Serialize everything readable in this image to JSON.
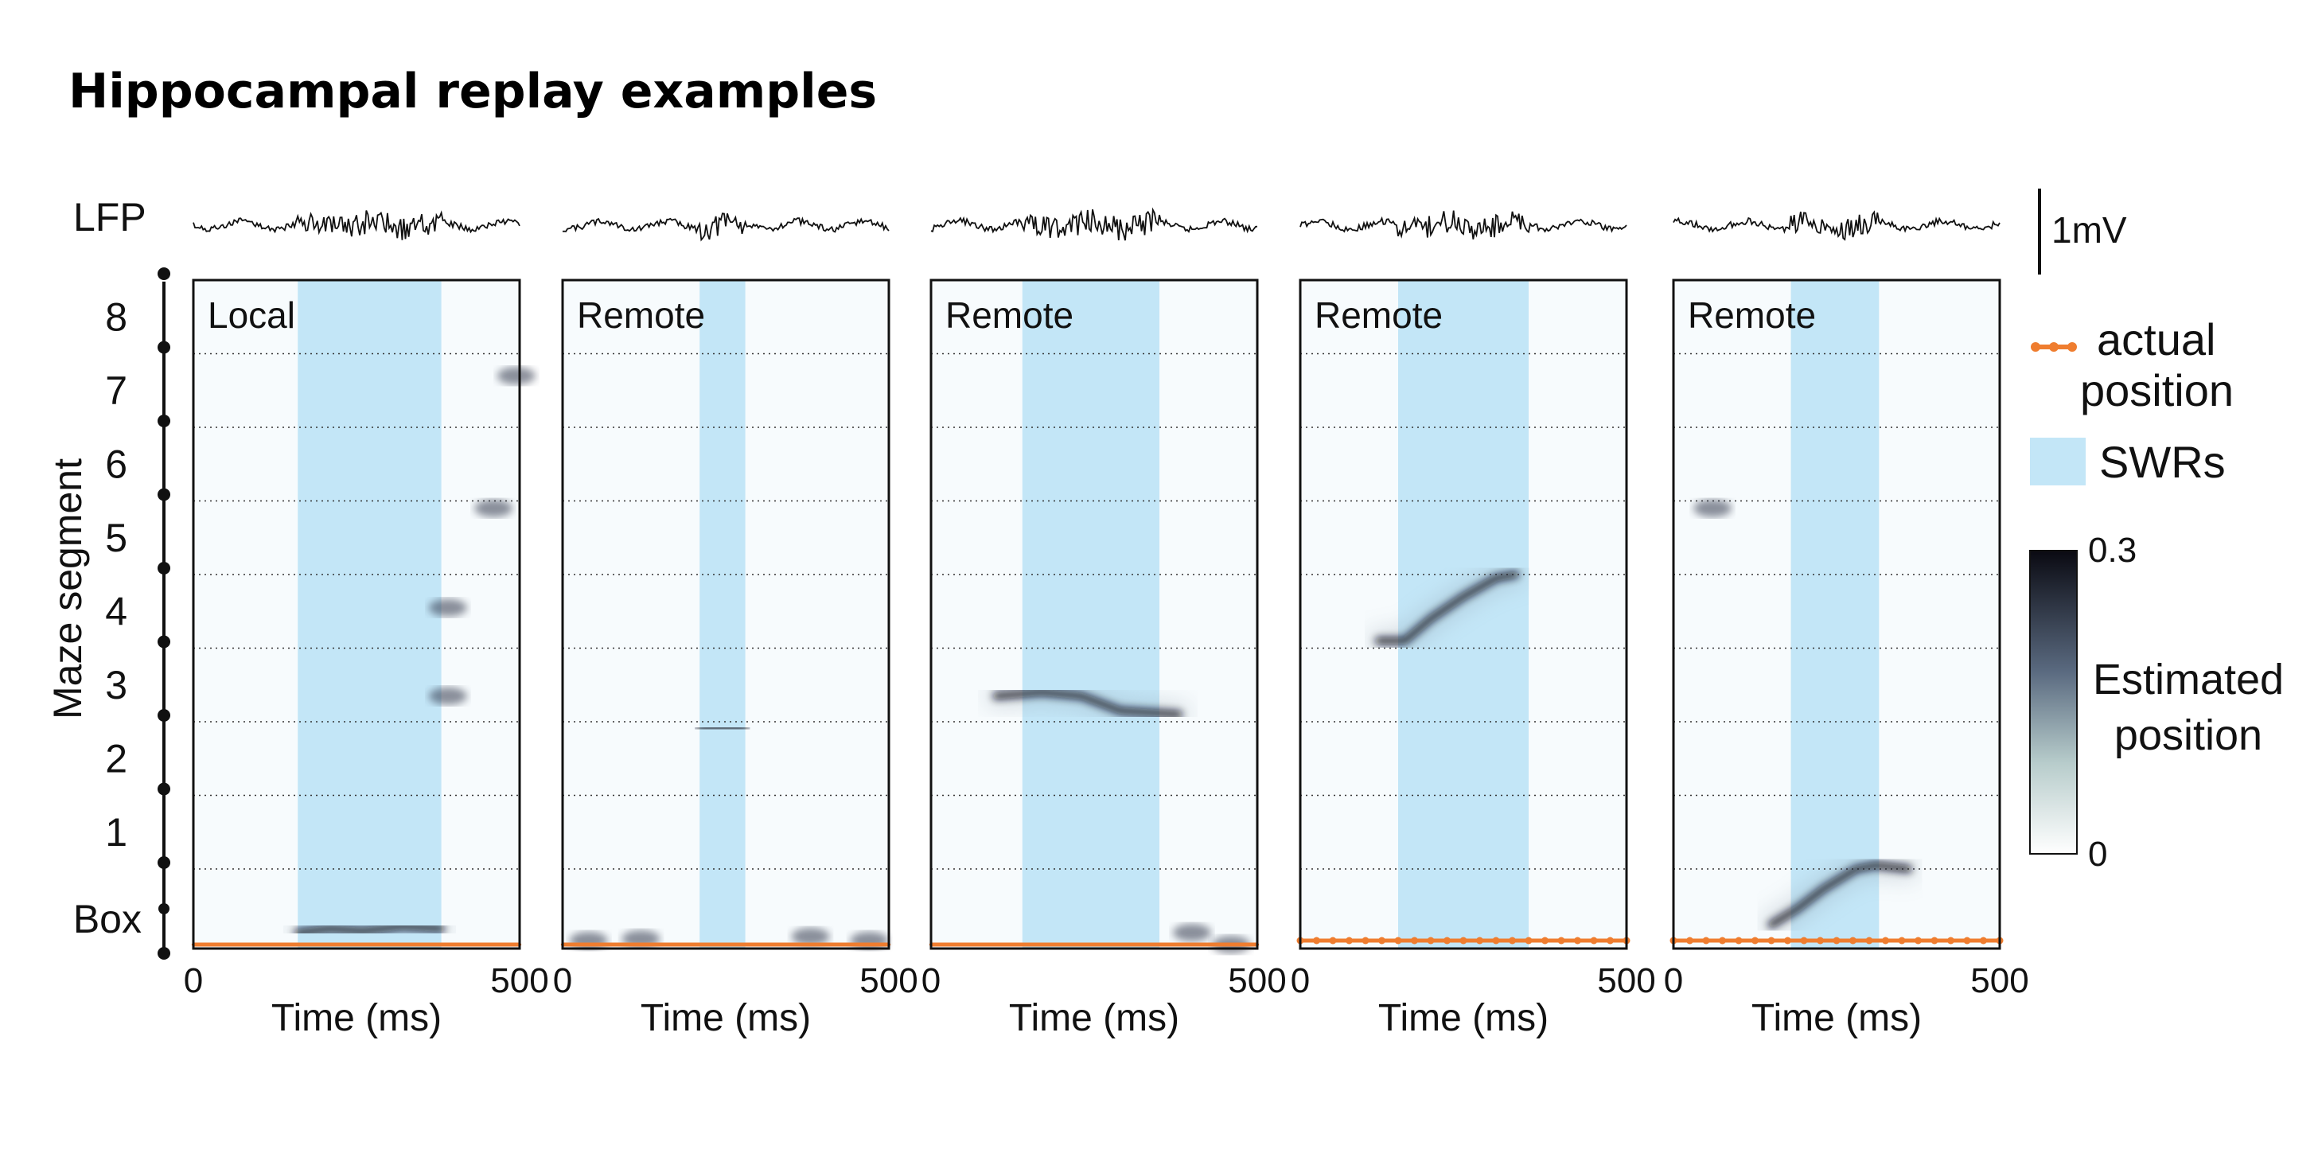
{
  "title": "Hippocampal replay examples",
  "lfp_label": "LFP",
  "scale_bar_label": "1mV",
  "y_axis_label": "Maze segment",
  "y_tick_labels": [
    "8",
    "7",
    "6",
    "5",
    "4",
    "3",
    "2",
    "1",
    "Box"
  ],
  "x_axis_label": "Time (ms)",
  "x_tick_labels": [
    "0",
    "500"
  ],
  "legend": {
    "actual_label_1": "actual",
    "actual_label_2": "position",
    "swr_label": "SWRs"
  },
  "colorbar": {
    "label_1": "Estimated",
    "label_2": "position",
    "max_label": "0.3",
    "min_label": "0",
    "vmin": 0,
    "vmax": 0.3
  },
  "colors": {
    "swr": "#c3e6f7",
    "actual_position": "#ef7d2f",
    "heat_high": "#0d0d1a",
    "heat_mid": "#4a5a70",
    "heat_low": "#ffffff"
  },
  "chart_data": {
    "type": "heatmap",
    "x_range_ms": [
      0,
      500
    ],
    "y_categories": [
      "Box",
      "1",
      "2",
      "3",
      "4",
      "5",
      "6",
      "7",
      "8"
    ],
    "panels": [
      {
        "label": "Local",
        "swr_ms": [
          160,
          380
        ],
        "actual_position_segment": 0.05,
        "actual_markers": false,
        "estimated_trajectory": [
          [
            160,
            0.2
          ],
          [
            210,
            0.25
          ],
          [
            260,
            0.22
          ],
          [
            320,
            0.28
          ],
          [
            380,
            0.25
          ]
        ],
        "extra_blobs": [
          [
            390,
            3.35
          ],
          [
            390,
            4.55
          ],
          [
            460,
            5.9
          ],
          [
            495,
            7.7
          ]
        ]
      },
      {
        "label": "Remote",
        "swr_ms": [
          210,
          280
        ],
        "actual_position_segment": 0.05,
        "actual_markers": false,
        "estimated_trajectory": [
          [
            210,
            2.9
          ],
          [
            240,
            2.92
          ],
          [
            280,
            2.9
          ]
        ],
        "extra_blobs": [
          [
            40,
            0.1
          ],
          [
            120,
            0.12
          ],
          [
            380,
            0.15
          ],
          [
            470,
            0.1
          ]
        ]
      },
      {
        "label": "Remote",
        "swr_ms": [
          140,
          350
        ],
        "actual_position_segment": 0.05,
        "actual_markers": false,
        "estimated_trajectory": [
          [
            100,
            3.35
          ],
          [
            170,
            3.4
          ],
          [
            230,
            3.35
          ],
          [
            290,
            3.15
          ],
          [
            380,
            3.1
          ]
        ],
        "extra_blobs": [
          [
            400,
            0.2
          ],
          [
            460,
            0.05
          ]
        ]
      },
      {
        "label": "Remote",
        "swr_ms": [
          150,
          350
        ],
        "actual_position_segment": 0.1,
        "actual_markers": true,
        "estimated_trajectory": [
          [
            120,
            4.1
          ],
          [
            160,
            4.1
          ],
          [
            200,
            4.4
          ],
          [
            250,
            4.7
          ],
          [
            300,
            4.95
          ],
          [
            330,
            5.0
          ]
        ],
        "extra_blobs": []
      },
      {
        "label": "Remote",
        "swr_ms": [
          180,
          315
        ],
        "actual_position_segment": 0.1,
        "actual_markers": true,
        "estimated_trajectory": [
          [
            150,
            0.3
          ],
          [
            190,
            0.5
          ],
          [
            230,
            0.75
          ],
          [
            280,
            1.0
          ],
          [
            310,
            1.05
          ],
          [
            360,
            1.0
          ]
        ],
        "extra_blobs": [
          [
            60,
            5.9
          ]
        ]
      }
    ]
  }
}
